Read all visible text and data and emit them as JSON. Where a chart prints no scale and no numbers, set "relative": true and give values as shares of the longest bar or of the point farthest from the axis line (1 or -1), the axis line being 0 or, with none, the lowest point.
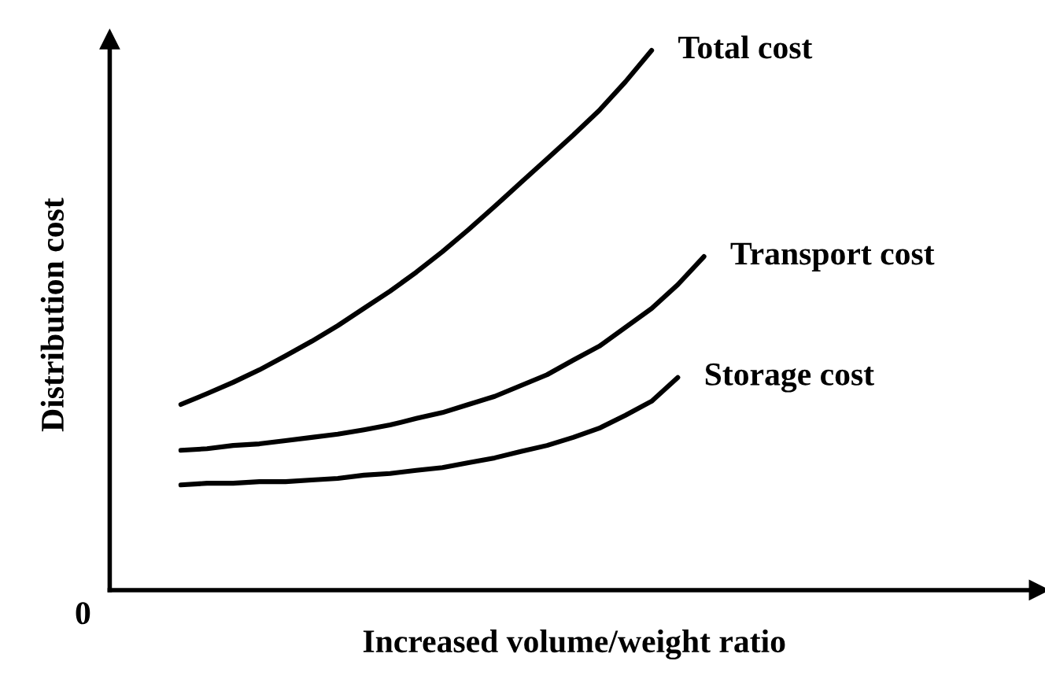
{
  "chart_data": {
    "type": "line",
    "relative": true,
    "xlabel": "Increased volume/weight ratio",
    "ylabel": "Distribution cost",
    "annotations": [
      "0"
    ],
    "legend": false,
    "marker": "none",
    "line_style": "solid",
    "categories": [
      null,
      null,
      null,
      null,
      null,
      null,
      null,
      null,
      null,
      null,
      null,
      null,
      null,
      null,
      null,
      null,
      null,
      null,
      null,
      null,
      null
    ],
    "series": [
      {
        "name": "Total cost",
        "color": "#000000",
        "values": [
          0.344,
          0.364,
          0.385,
          0.408,
          0.434,
          0.461,
          0.49,
          0.522,
          0.554,
          0.589,
          0.627,
          0.668,
          0.711,
          0.755,
          0.799,
          0.843,
          0.889,
          0.942,
          1.0,
          null,
          null
        ]
      },
      {
        "name": "Transport cost",
        "color": "#000000",
        "values": [
          0.259,
          0.262,
          0.268,
          0.271,
          0.277,
          0.283,
          0.289,
          0.297,
          0.306,
          0.318,
          0.329,
          0.344,
          0.359,
          0.379,
          0.399,
          0.426,
          0.452,
          0.487,
          0.522,
          0.566,
          0.618
        ]
      },
      {
        "name": "Storage cost",
        "color": "#000000",
        "values": [
          0.195,
          0.198,
          0.198,
          0.201,
          0.201,
          0.204,
          0.207,
          0.213,
          0.216,
          0.222,
          0.227,
          0.236,
          0.245,
          0.257,
          0.268,
          0.283,
          0.3,
          0.324,
          0.35,
          0.394,
          null
        ]
      }
    ]
  }
}
